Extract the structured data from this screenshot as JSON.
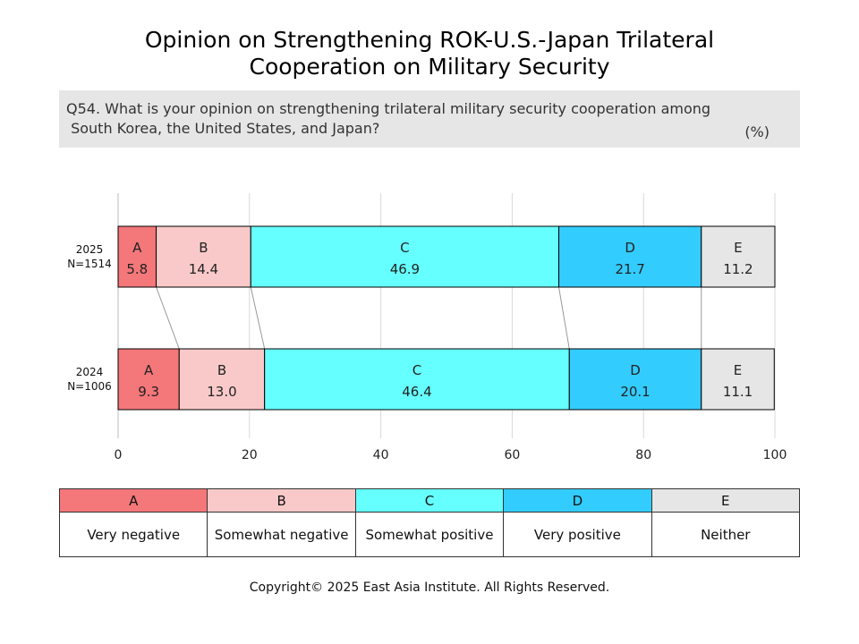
{
  "title_line1": "Opinion on Strengthening ROK-U.S.-Japan Trilateral",
  "title_line2": "Cooperation on Military Security",
  "question_line1": "Q54. What is your opinion on strengthening trilateral military security cooperation among",
  "question_line2": " South Korea, the United States, and Japan?",
  "unit": "(%)",
  "copyright": "Copyright© 2025 East Asia Institute. All Rights Reserved.",
  "legend": [
    {
      "code": "A",
      "label": "Very negative",
      "color": "#f4777a"
    },
    {
      "code": "B",
      "label": "Somewhat negative",
      "color": "#f9c9c9"
    },
    {
      "code": "C",
      "label": "Somewhat positive",
      "color": "#66ffff"
    },
    {
      "code": "D",
      "label": "Very positive",
      "color": "#33ccff"
    },
    {
      "code": "E",
      "label": "Neither",
      "color": "#e6e6e6"
    }
  ],
  "chart_data": {
    "type": "bar",
    "orientation": "horizontal",
    "stacked": true,
    "categories": [
      "2025\nN=1514",
      "2024\nN=1006"
    ],
    "series": [
      {
        "name": "A",
        "values": [
          5.8,
          9.3
        ]
      },
      {
        "name": "B",
        "values": [
          14.4,
          13.0
        ]
      },
      {
        "name": "C",
        "values": [
          46.9,
          46.4
        ]
      },
      {
        "name": "D",
        "values": [
          21.7,
          20.1
        ]
      },
      {
        "name": "E",
        "values": [
          11.2,
          11.1
        ]
      }
    ],
    "xlim": [
      0,
      100
    ],
    "xticks": [
      0,
      20,
      40,
      60,
      80,
      100
    ],
    "grid": true,
    "connector_lines": true
  }
}
